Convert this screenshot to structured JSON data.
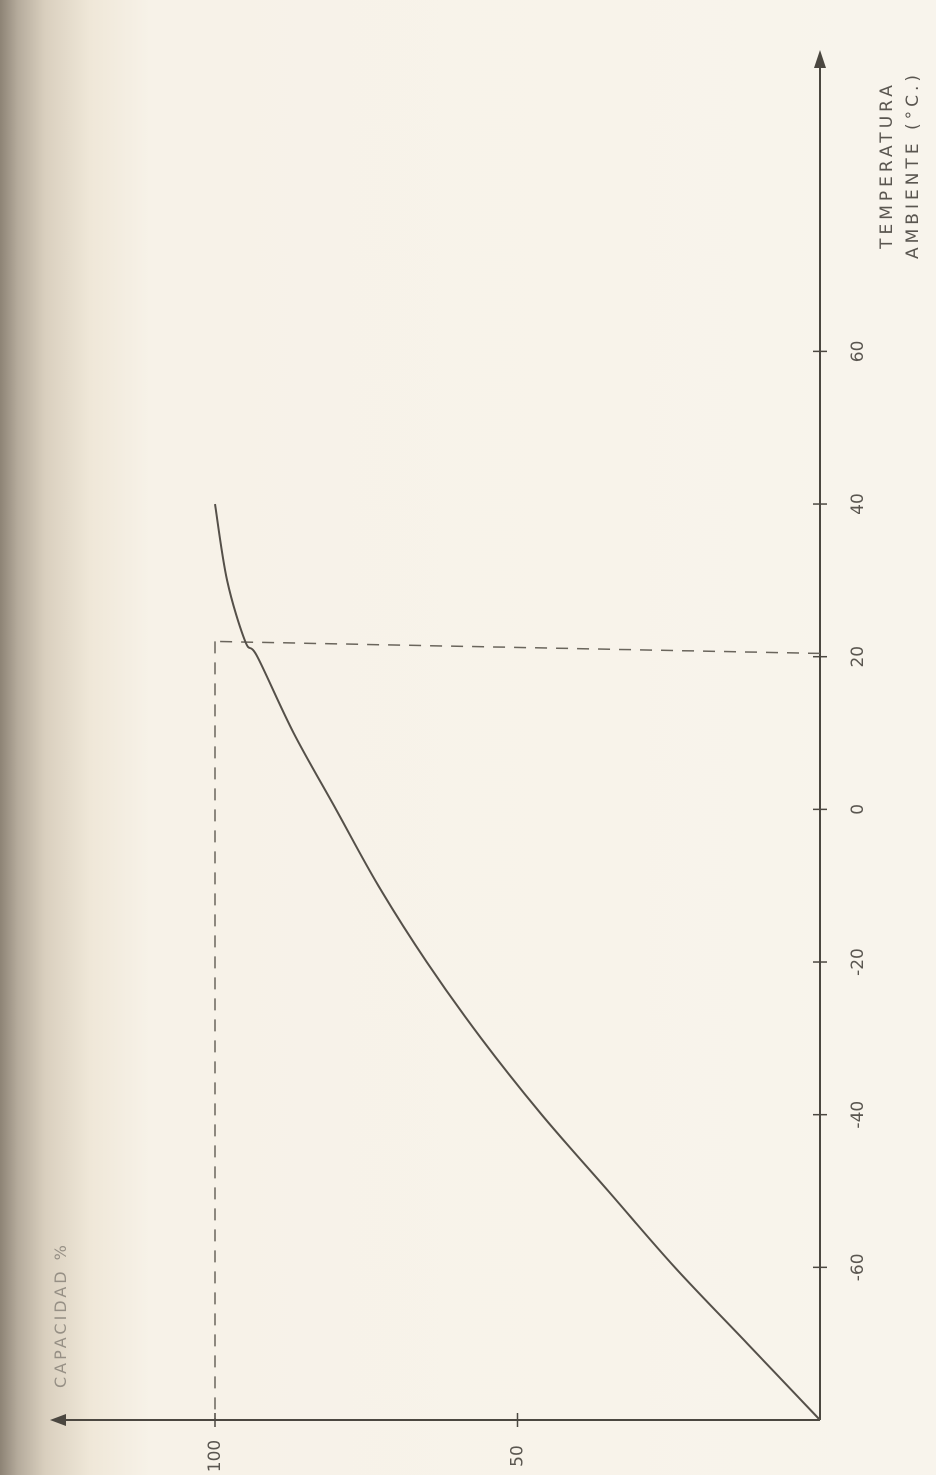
{
  "chart_data": {
    "type": "line",
    "ylabel": "CAPACIDAD %",
    "xlabel_lines": [
      "TEMPERATURA",
      "AMBIENTE (°C.)"
    ],
    "x_ticks": [
      "-60",
      "-40",
      "-20",
      "0",
      "20",
      "40",
      "60"
    ],
    "y_ticks": [
      "50",
      "100"
    ],
    "x": [
      -80,
      -70,
      -60,
      -50,
      -40,
      -30,
      -20,
      -10,
      0,
      10,
      20,
      22,
      30,
      40
    ],
    "y": [
      0,
      12,
      24,
      35,
      46,
      56,
      65,
      73,
      80,
      87,
      93,
      95,
      98,
      100
    ],
    "reference_point": {
      "x": 22,
      "y": 100
    },
    "xlim": [
      -80,
      80
    ],
    "ylim": [
      0,
      115
    ],
    "grid": false,
    "line_color": "#555049",
    "axis_color": "#4b4740",
    "guide_color": "#6a655c"
  }
}
